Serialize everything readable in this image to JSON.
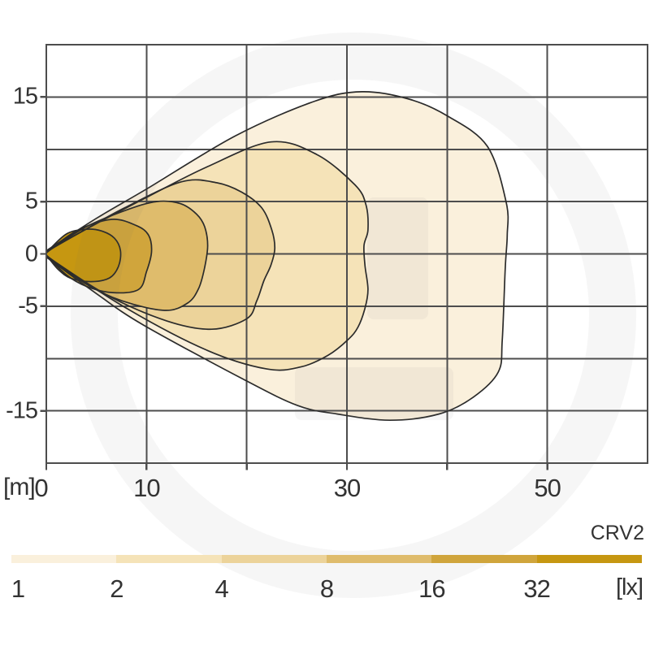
{
  "title": "CRV2",
  "axes": {
    "x_unit_label": "[m]",
    "x_range_m": [
      0,
      60
    ],
    "x_grid_step_m": 10,
    "x_tick_labels": [
      0,
      10,
      30,
      50
    ],
    "y_range_m": [
      -20,
      20
    ],
    "y_grid_step_m": 5,
    "y_tick_labels": [
      15,
      5,
      0,
      -5,
      -15
    ]
  },
  "legend": {
    "unit_label": "[lx]",
    "values": [
      "1",
      "2",
      "4",
      "8",
      "16",
      "32"
    ],
    "colors": [
      "#FAF0DC",
      "#F5E3B8",
      "#ECD39A",
      "#DFBC6C",
      "#D0A53C",
      "#C69711"
    ]
  },
  "watermark": {
    "name": "granit-logo-watermark",
    "color": "rgba(100,100,110,0.06)"
  },
  "chart_data": {
    "type": "area",
    "subtype": "isolux-contour-map",
    "title": "CRV2",
    "description": "Work-light beam pattern: nested illuminance contours (lux) over distance in metres",
    "xlabel": "[m]",
    "ylabel": "[m]",
    "xlim": [
      0,
      60
    ],
    "ylim": [
      -20,
      20
    ],
    "grid": true,
    "legend_position": "bottom",
    "contours": [
      {
        "lux": 1,
        "color": "#FAF0DC",
        "points_m": [
          [
            0,
            0.3
          ],
          [
            5,
            3.4
          ],
          [
            10,
            6.2
          ],
          [
            18.9,
            11.3
          ],
          [
            26.8,
            14.6
          ],
          [
            31.5,
            15.5
          ],
          [
            36.2,
            14.8
          ],
          [
            40,
            13.2
          ],
          [
            44,
            10.3
          ],
          [
            45.9,
            4.9
          ],
          [
            46,
            1.8
          ],
          [
            45.8,
            -1.3
          ],
          [
            45.5,
            -8.2
          ],
          [
            45.1,
            -11.3
          ],
          [
            42.6,
            -13.7
          ],
          [
            39.2,
            -15.3
          ],
          [
            34.3,
            -15.9
          ],
          [
            29,
            -15.3
          ],
          [
            25.1,
            -14.5
          ],
          [
            19.7,
            -12
          ],
          [
            9.7,
            -6.8
          ],
          [
            5,
            -3.8
          ],
          [
            0,
            -0.3
          ]
        ]
      },
      {
        "lux": 2,
        "color": "#F5E3B8",
        "points_m": [
          [
            0,
            0.25
          ],
          [
            5,
            2.9
          ],
          [
            10,
            5.4
          ],
          [
            16,
            8.3
          ],
          [
            22.4,
            10.7
          ],
          [
            27,
            9.5
          ],
          [
            30.8,
            6.6
          ],
          [
            31.9,
            4.7
          ],
          [
            32.1,
            2.3
          ],
          [
            31.7,
            0.8
          ],
          [
            31.8,
            -1.1
          ],
          [
            32.1,
            -3.4
          ],
          [
            31.8,
            -5.2
          ],
          [
            31.1,
            -7
          ],
          [
            30.1,
            -8.2
          ],
          [
            28.1,
            -9.7
          ],
          [
            25.4,
            -10.8
          ],
          [
            22,
            -11
          ],
          [
            16,
            -9.2
          ],
          [
            8,
            -5.2
          ],
          [
            0,
            -0.25
          ]
        ]
      },
      {
        "lux": 4,
        "color": "#ECD39A",
        "points_m": [
          [
            0,
            0.2
          ],
          [
            4,
            2.4
          ],
          [
            8,
            4.5
          ],
          [
            13.5,
            6.9
          ],
          [
            17,
            6.8
          ],
          [
            19.5,
            5.9
          ],
          [
            21.5,
            4.4
          ],
          [
            22.5,
            2.3
          ],
          [
            22.8,
            0.5
          ],
          [
            22.4,
            -1.1
          ],
          [
            21.7,
            -2.6
          ],
          [
            21,
            -4.5
          ],
          [
            20,
            -6.2
          ],
          [
            16.5,
            -7.2
          ],
          [
            12,
            -6.4
          ],
          [
            6,
            -3.9
          ],
          [
            0,
            -0.2
          ]
        ]
      },
      {
        "lux": 8,
        "color": "#DFBC6C",
        "points_m": [
          [
            0,
            0.15
          ],
          [
            4,
            2.6
          ],
          [
            8,
            4.2
          ],
          [
            11,
            5
          ],
          [
            13.4,
            4.8
          ],
          [
            15,
            3.8
          ],
          [
            15.8,
            2.6
          ],
          [
            16.1,
            0.8
          ],
          [
            15.8,
            -1.3
          ],
          [
            15.2,
            -3.3
          ],
          [
            14.1,
            -4.7
          ],
          [
            11.8,
            -5.4
          ],
          [
            7.6,
            -4.5
          ],
          [
            4,
            -2.9
          ],
          [
            0,
            -0.15
          ]
        ]
      },
      {
        "lux": 16,
        "color": "#D0A53C",
        "points_m": [
          [
            0,
            0.1
          ],
          [
            3,
            2.2
          ],
          [
            6.5,
            3.3
          ],
          [
            9,
            2.7
          ],
          [
            10.2,
            1.8
          ],
          [
            10.5,
            0.2
          ],
          [
            10,
            -1.7
          ],
          [
            9.2,
            -3.4
          ],
          [
            6.6,
            -3.7
          ],
          [
            4,
            -3.1
          ],
          [
            2,
            -2
          ],
          [
            0,
            -0.1
          ]
        ]
      },
      {
        "lux": 32,
        "color": "#C69711",
        "points_m": [
          [
            0,
            0.1
          ],
          [
            2,
            1.9
          ],
          [
            4,
            2.35
          ],
          [
            5.5,
            2.2
          ],
          [
            6.8,
            1.5
          ],
          [
            7.4,
            0.3
          ],
          [
            7.2,
            -1.2
          ],
          [
            6.3,
            -2.3
          ],
          [
            4.5,
            -2.65
          ],
          [
            2.5,
            -2.35
          ],
          [
            1.2,
            -1.5
          ],
          [
            0,
            -0.1
          ]
        ]
      }
    ]
  }
}
